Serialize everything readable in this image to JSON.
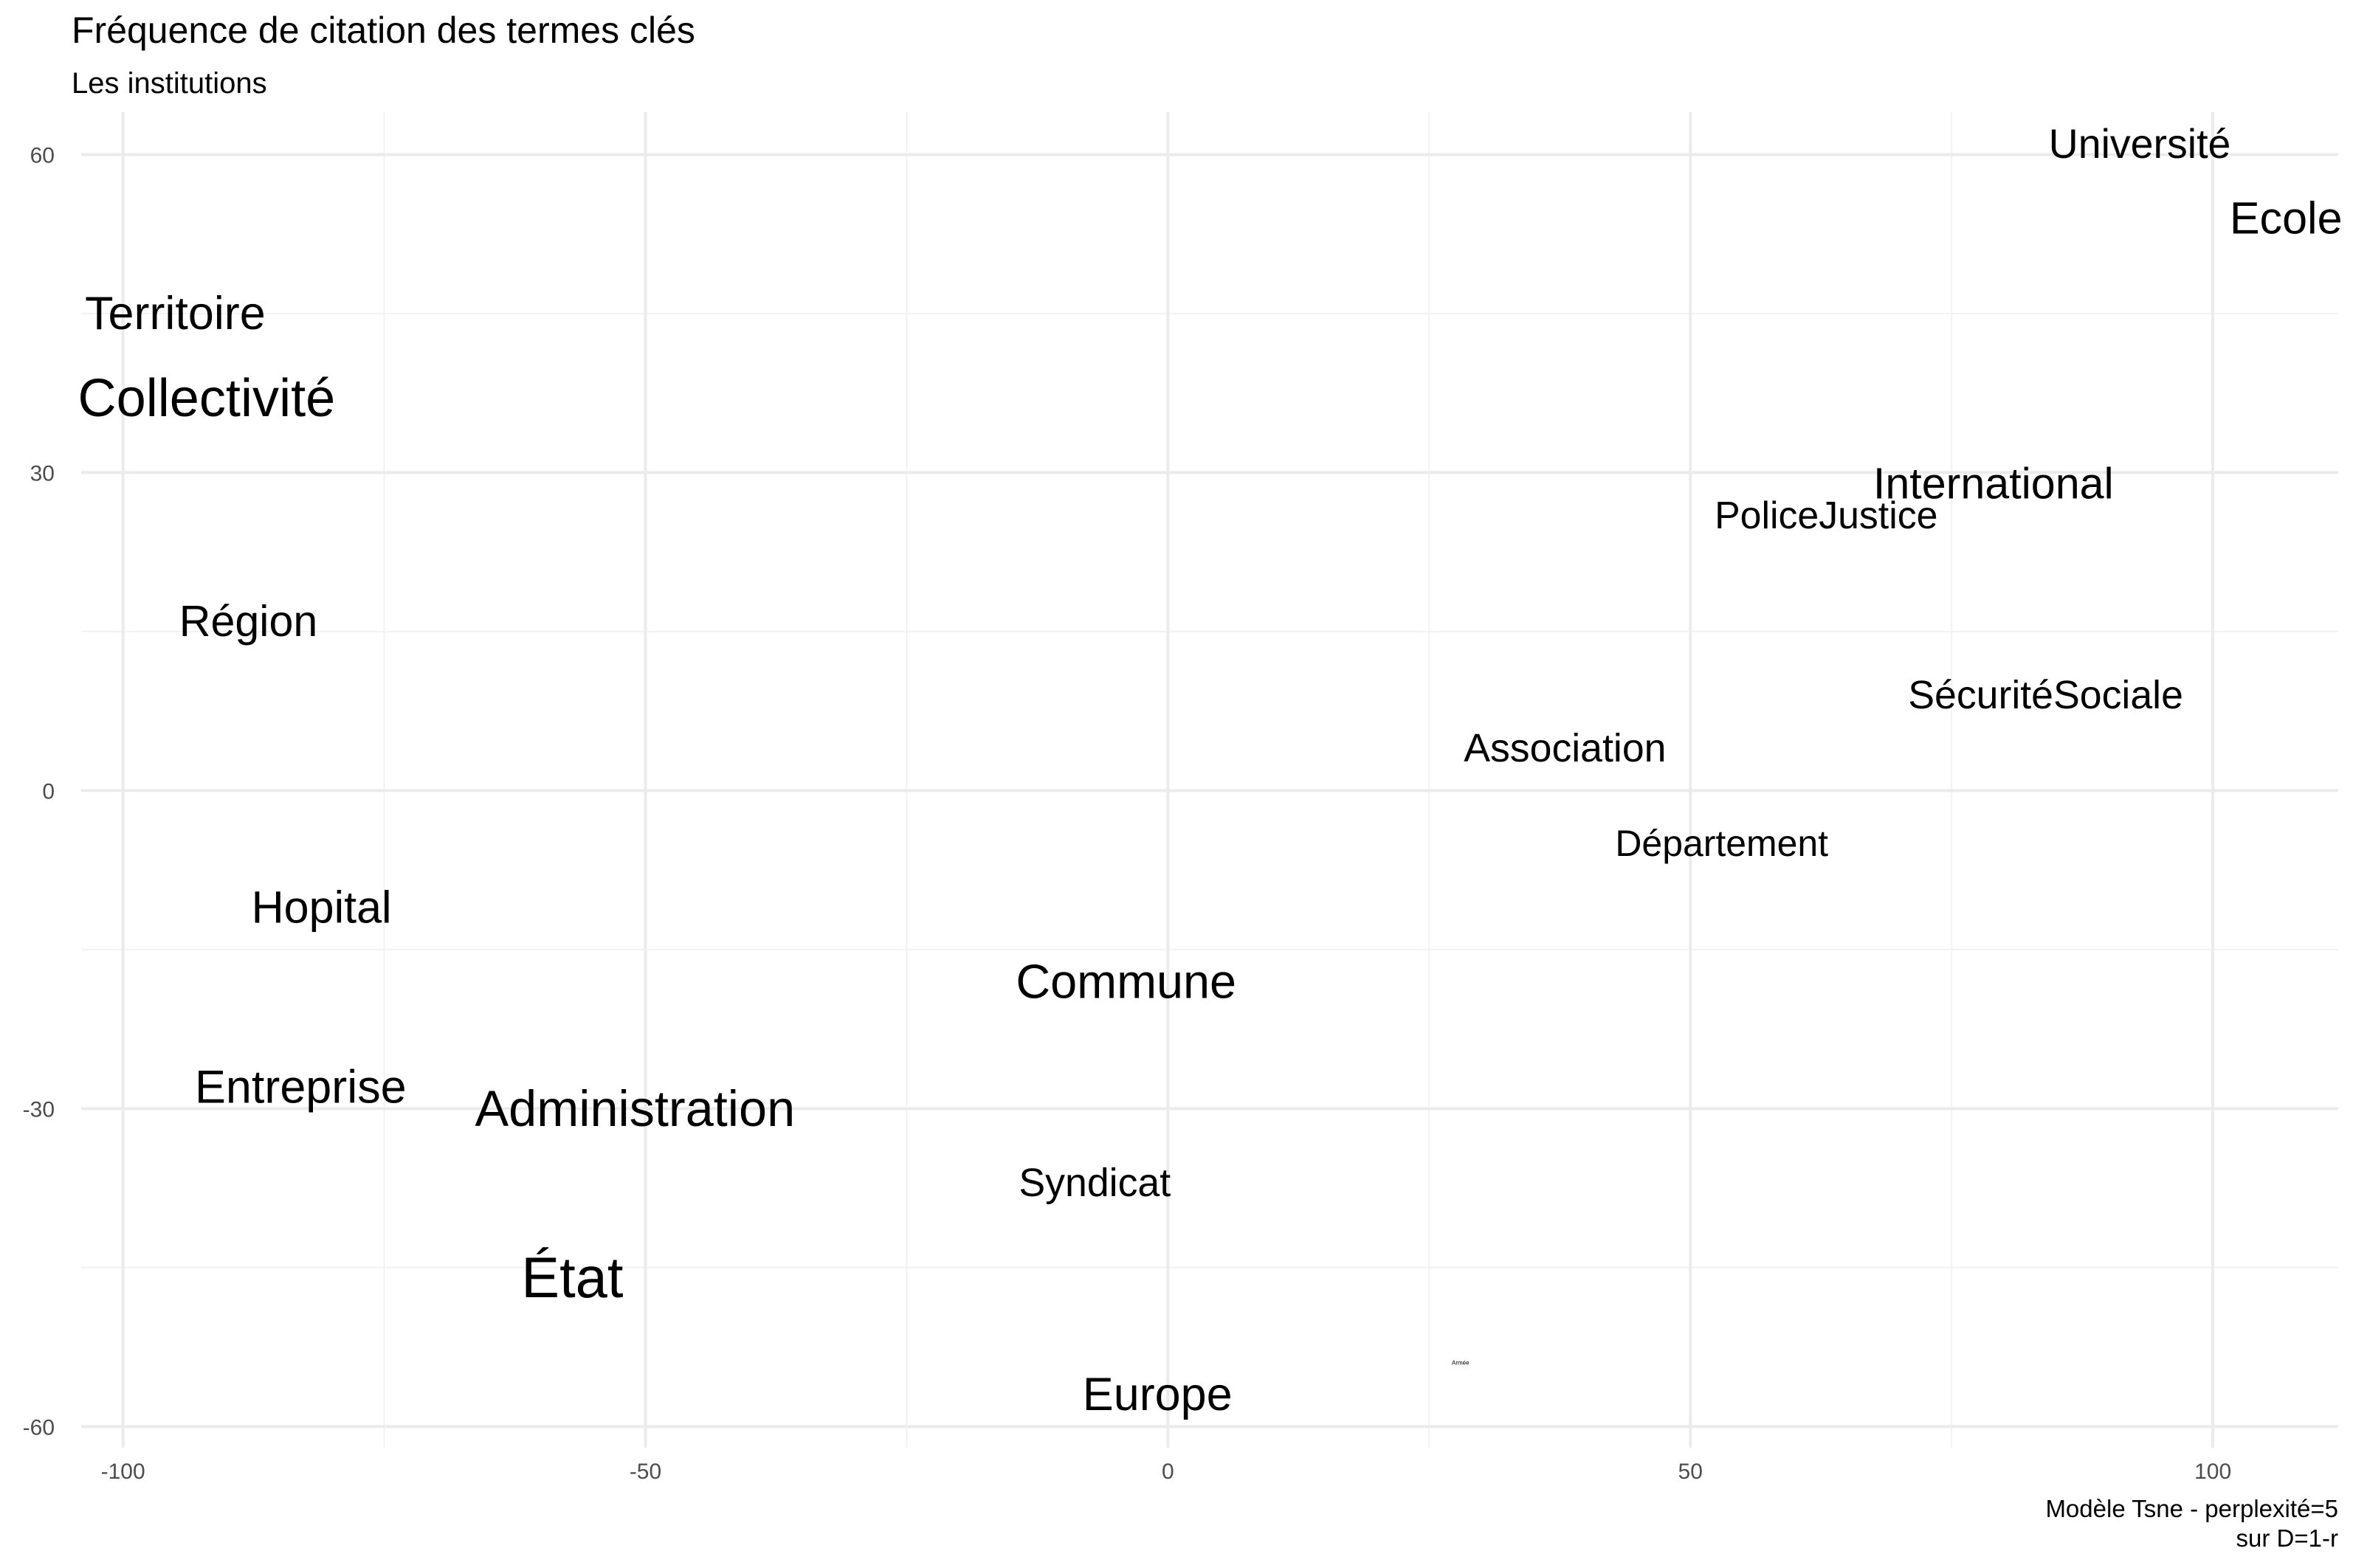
{
  "chart_data": {
    "type": "scatter",
    "title": "Fréquence de citation des termes clés",
    "subtitle": "Les institutions",
    "caption": [
      "Modèle Tsne - perplexité=5",
      "sur D=1-r"
    ],
    "xlabel": "",
    "ylabel": "",
    "xlim": [
      -104,
      112
    ],
    "ylim": [
      -62,
      64
    ],
    "x_ticks": [
      -100,
      -50,
      0,
      50,
      100
    ],
    "y_ticks": [
      -60,
      -30,
      0,
      30,
      60
    ],
    "grid": true,
    "legend": "none",
    "points": [
      {
        "label": "Université",
        "x": 93,
        "y": 61,
        "size": 3
      },
      {
        "label": "Ecole",
        "x": 107,
        "y": 54,
        "size": 3.3
      },
      {
        "label": "Territoire",
        "x": -95,
        "y": 45,
        "size": 3.4
      },
      {
        "label": "Collectivité",
        "x": -92,
        "y": 37,
        "size": 3.9
      },
      {
        "label": "International",
        "x": 79,
        "y": 29,
        "size": 3.2
      },
      {
        "label": "PoliceJustice",
        "x": 63,
        "y": 26,
        "size": 2.8
      },
      {
        "label": "Région",
        "x": -88,
        "y": 16,
        "size": 3.2
      },
      {
        "label": "SécuritéSociale",
        "x": 84,
        "y": 9,
        "size": 2.9
      },
      {
        "label": "Association",
        "x": 38,
        "y": 4,
        "size": 2.9
      },
      {
        "label": "Département",
        "x": 53,
        "y": -5,
        "size": 2.7
      },
      {
        "label": "Hopital",
        "x": -81,
        "y": -11,
        "size": 3.3
      },
      {
        "label": "Commune",
        "x": -4,
        "y": -18,
        "size": 3.5
      },
      {
        "label": "Entreprise",
        "x": -83,
        "y": -28,
        "size": 3.4
      },
      {
        "label": "Administration",
        "x": -51,
        "y": -30,
        "size": 3.7
      },
      {
        "label": "Syndicat",
        "x": -7,
        "y": -37,
        "size": 2.9
      },
      {
        "label": "État",
        "x": -57,
        "y": -46,
        "size": 4.2
      },
      {
        "label": "Europe",
        "x": -1,
        "y": -57,
        "size": 3.4
      },
      {
        "label": "Armée",
        "x": 28,
        "y": -54,
        "size": 0.3
      }
    ]
  }
}
